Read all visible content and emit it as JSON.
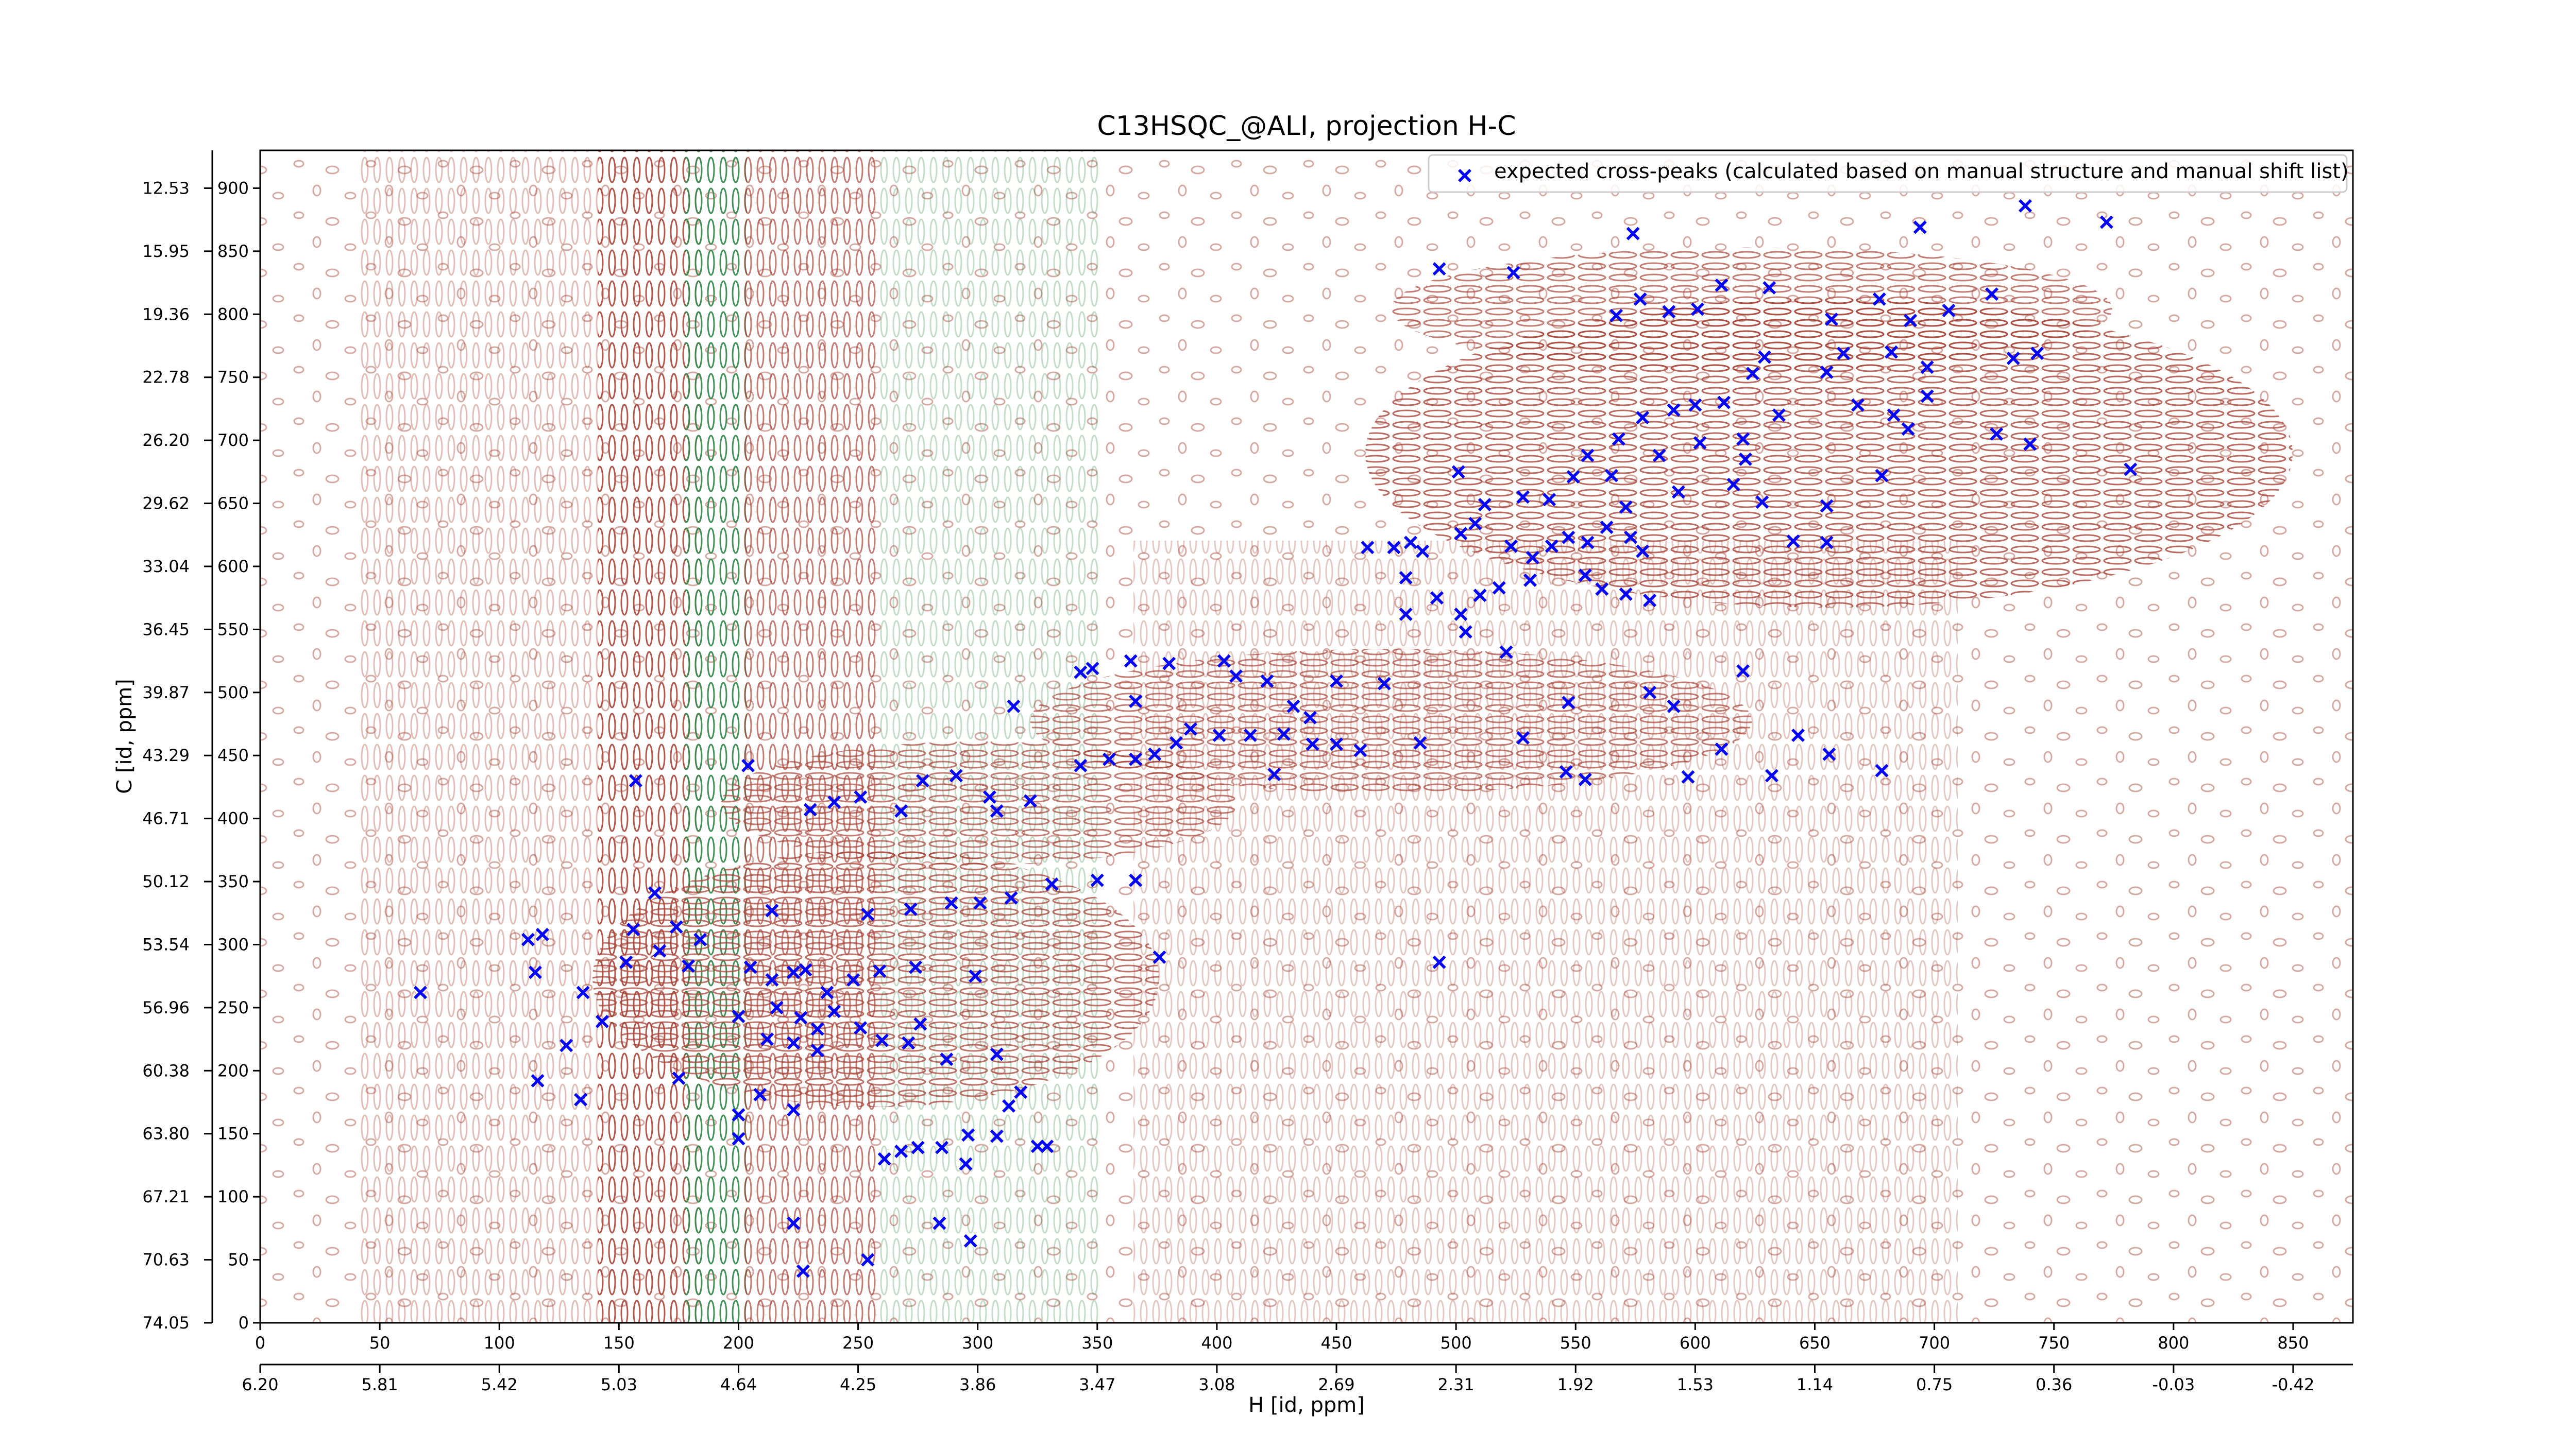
{
  "chart_data": {
    "type": "scatter",
    "title": "C13HSQC_@ALI, projection H-C",
    "xlabel": "H [id, ppm]",
    "ylabel": "C [id, ppm]",
    "xlim": [
      0,
      875
    ],
    "ylim": [
      0,
      930
    ],
    "xticks": [
      0,
      50,
      100,
      150,
      200,
      250,
      300,
      350,
      400,
      450,
      500,
      550,
      600,
      650,
      700,
      750,
      800,
      850
    ],
    "yticks": [
      0,
      50,
      100,
      150,
      200,
      250,
      300,
      350,
      400,
      450,
      500,
      550,
      600,
      650,
      700,
      750,
      800,
      850,
      900
    ],
    "ppm_xticks": [
      {
        "value": 0,
        "label": "6.20"
      },
      {
        "value": 50,
        "label": "5.81"
      },
      {
        "value": 100,
        "label": "5.42"
      },
      {
        "value": 150,
        "label": "5.03"
      },
      {
        "value": 200,
        "label": "4.64"
      },
      {
        "value": 250,
        "label": "4.25"
      },
      {
        "value": 300,
        "label": "3.86"
      },
      {
        "value": 350,
        "label": "3.47"
      },
      {
        "value": 400,
        "label": "3.08"
      },
      {
        "value": 450,
        "label": "2.69"
      },
      {
        "value": 500,
        "label": "2.31"
      },
      {
        "value": 550,
        "label": "1.92"
      },
      {
        "value": 600,
        "label": "1.53"
      },
      {
        "value": 650,
        "label": "1.14"
      },
      {
        "value": 700,
        "label": "0.75"
      },
      {
        "value": 750,
        "label": "0.36"
      },
      {
        "value": 800,
        "label": "-0.03"
      },
      {
        "value": 850,
        "label": "-0.42"
      }
    ],
    "ppm_yticks": [
      {
        "value": 0,
        "label": "74.05"
      },
      {
        "value": 50,
        "label": "70.63"
      },
      {
        "value": 100,
        "label": "67.21"
      },
      {
        "value": 150,
        "label": "63.80"
      },
      {
        "value": 200,
        "label": "60.38"
      },
      {
        "value": 250,
        "label": "56.96"
      },
      {
        "value": 300,
        "label": "53.54"
      },
      {
        "value": 350,
        "label": "50.12"
      },
      {
        "value": 400,
        "label": "46.71"
      },
      {
        "value": 450,
        "label": "43.29"
      },
      {
        "value": 500,
        "label": "39.87"
      },
      {
        "value": 550,
        "label": "36.45"
      },
      {
        "value": 600,
        "label": "33.04"
      },
      {
        "value": 650,
        "label": "29.62"
      },
      {
        "value": 700,
        "label": "26.20"
      },
      {
        "value": 750,
        "label": "22.78"
      },
      {
        "value": 800,
        "label": "19.36"
      },
      {
        "value": 850,
        "label": "15.95"
      },
      {
        "value": 900,
        "label": "12.53"
      }
    ],
    "legend": "upper right",
    "series": [
      {
        "name": "expected cross-peaks (calculated based on manual structure and manual shift list)",
        "color": "#0000ff",
        "x": [
          738,
          772,
          694,
          574,
          493,
          524,
          724,
          706,
          690,
          677,
          657,
          631,
          611,
          601,
          589,
          577,
          567,
          743,
          733,
          697,
          682,
          662,
          655,
          629,
          624,
          697,
          668,
          683,
          726,
          740,
          782,
          678,
          689,
          612,
          600,
          591,
          578,
          635,
          620,
          621,
          616,
          602,
          585,
          568,
          555,
          549,
          501,
          512,
          528,
          539,
          565,
          571,
          593,
          628,
          655,
          641,
          655,
          463,
          474,
          481,
          486,
          502,
          508,
          523,
          532,
          540,
          547,
          555,
          563,
          573,
          578,
          554,
          561,
          571,
          581,
          531,
          518,
          510,
          502,
          492,
          479,
          479,
          504,
          521,
          581,
          547,
          620,
          591,
          343,
          348,
          364,
          380,
          403,
          408,
          421,
          432,
          450,
          470,
          439,
          428,
          414,
          401,
          383,
          374,
          366,
          355,
          343,
          315,
          366,
          389,
          424,
          440,
          450,
          460,
          485,
          528,
          546,
          554,
          597,
          611,
          632,
          643,
          656,
          678,
          251,
          240,
          230,
          268,
          291,
          305,
          308,
          322,
          277,
          157,
          204,
          331,
          350,
          366,
          314,
          301,
          289,
          272,
          254,
          165,
          156,
          174,
          184,
          153,
          167,
          112,
          118,
          115,
          135,
          143,
          128,
          214,
          205,
          214,
          223,
          228,
          237,
          248,
          259,
          274,
          299,
          376,
          493,
          200,
          216,
          226,
          233,
          240,
          212,
          223,
          233,
          251,
          260,
          271,
          276,
          287,
          308,
          318,
          313,
          116,
          134,
          175,
          200,
          209,
          223,
          261,
          268,
          275,
          285,
          296,
          308,
          325,
          329,
          295,
          67,
          223,
          227,
          254,
          284,
          297,
          200,
          179
        ],
        "y": [
          886,
          873,
          869,
          864,
          836,
          833,
          816,
          803,
          795,
          812,
          796,
          821,
          823,
          804,
          802,
          812,
          799,
          769,
          765,
          758,
          770,
          769,
          754,
          766,
          753,
          735,
          728,
          720,
          705,
          697,
          677,
          672,
          709,
          730,
          728,
          724,
          718,
          720,
          701,
          685,
          665,
          698,
          688,
          701,
          688,
          671,
          675,
          649,
          655,
          653,
          672,
          647,
          659,
          651,
          648,
          620,
          619,
          615,
          615,
          619,
          612,
          626,
          634,
          616,
          607,
          616,
          623,
          619,
          631,
          623,
          612,
          593,
          582,
          578,
          573,
          589,
          583,
          577,
          562,
          575,
          591,
          562,
          548,
          532,
          500,
          492,
          517,
          489,
          516,
          519,
          525,
          523,
          525,
          513,
          509,
          489,
          509,
          507,
          480,
          467,
          466,
          466,
          460,
          451,
          447,
          447,
          442,
          489,
          493,
          471,
          435,
          459,
          459,
          454,
          460,
          464,
          437,
          431,
          433,
          455,
          434,
          466,
          451,
          438,
          417,
          413,
          407,
          406,
          434,
          417,
          406,
          414,
          430,
          430,
          442,
          348,
          351,
          351,
          337,
          333,
          333,
          328,
          324,
          341,
          312,
          314,
          304,
          286,
          295,
          304,
          308,
          278,
          262,
          239,
          220,
          327,
          282,
          272,
          278,
          280,
          262,
          272,
          279,
          282,
          275,
          290,
          286,
          243,
          250,
          242,
          233,
          247,
          225,
          222,
          216,
          234,
          224,
          222,
          237,
          209,
          213,
          183,
          172,
          192,
          177,
          194,
          165,
          181,
          169,
          130,
          136,
          139,
          139,
          149,
          148,
          140,
          140,
          126,
          262,
          79,
          41,
          50,
          79,
          65,
          146,
          283
        ]
      }
    ]
  }
}
